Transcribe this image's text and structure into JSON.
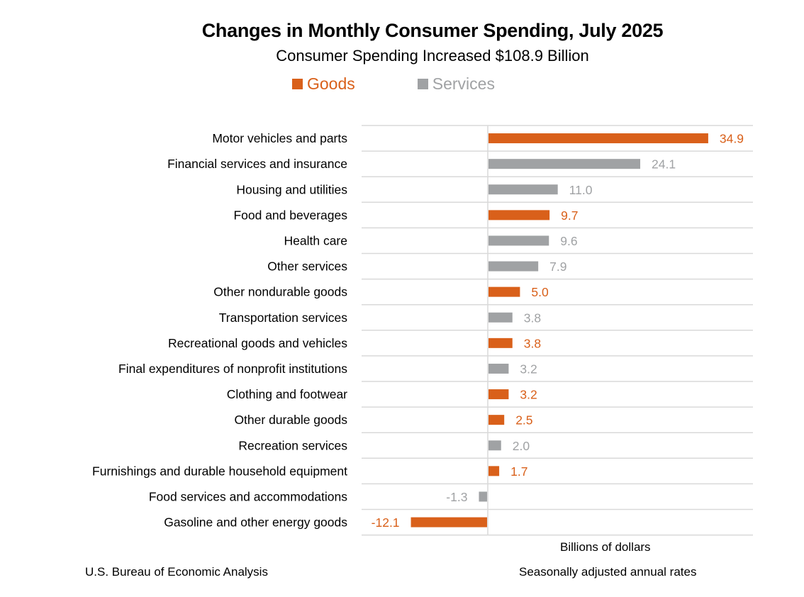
{
  "chart_data": {
    "type": "bar",
    "orientation": "horizontal",
    "title": "Changes in Monthly Consumer Spending, July 2025",
    "subtitle": "Consumer Spending Increased $108.9 Billion",
    "xlabel": "Billions of dollars",
    "ylabel": "",
    "legend": {
      "placement": "top",
      "entries": [
        {
          "name": "Goods",
          "color": "#D9601A"
        },
        {
          "name": "Services",
          "color": "#A0A2A4"
        }
      ]
    },
    "grid": "horizontal row separators",
    "categories": [
      "Motor vehicles and parts",
      "Financial services and insurance",
      "Housing and utilities",
      "Food and beverages",
      "Health care",
      "Other services",
      "Other nondurable goods",
      "Transportation services",
      "Recreational goods and vehicles",
      "Final expenditures of nonprofit institutions",
      "Clothing and footwear",
      "Other durable goods",
      "Recreation services",
      "Furnishings and durable household equipment",
      "Food services and accommodations",
      "Gasoline and other energy goods"
    ],
    "values": [
      34.9,
      24.1,
      11.0,
      9.7,
      9.6,
      7.9,
      5.0,
      3.8,
      3.8,
      3.2,
      3.2,
      2.5,
      2.0,
      1.7,
      -1.3,
      -12.1
    ],
    "value_labels": [
      "34.9",
      "24.1",
      "11.0",
      "9.7",
      "9.6",
      "7.9",
      "5.0",
      "3.8",
      "3.8",
      "3.2",
      "3.2",
      "2.5",
      "2.0",
      "1.7",
      "-1.3",
      "-12.1"
    ],
    "series_type": [
      "Goods",
      "Services",
      "Services",
      "Goods",
      "Services",
      "Services",
      "Goods",
      "Services",
      "Goods",
      "Services",
      "Goods",
      "Goods",
      "Services",
      "Goods",
      "Services",
      "Goods"
    ],
    "xlim": [
      -20,
      42
    ]
  },
  "footer": {
    "source": "U.S. Bureau of Economic Analysis",
    "note": "Seasonally adjusted annual rates"
  },
  "colors": {
    "goods": "#D9601A",
    "services": "#A0A2A4",
    "grid": "#D9D9D9"
  }
}
